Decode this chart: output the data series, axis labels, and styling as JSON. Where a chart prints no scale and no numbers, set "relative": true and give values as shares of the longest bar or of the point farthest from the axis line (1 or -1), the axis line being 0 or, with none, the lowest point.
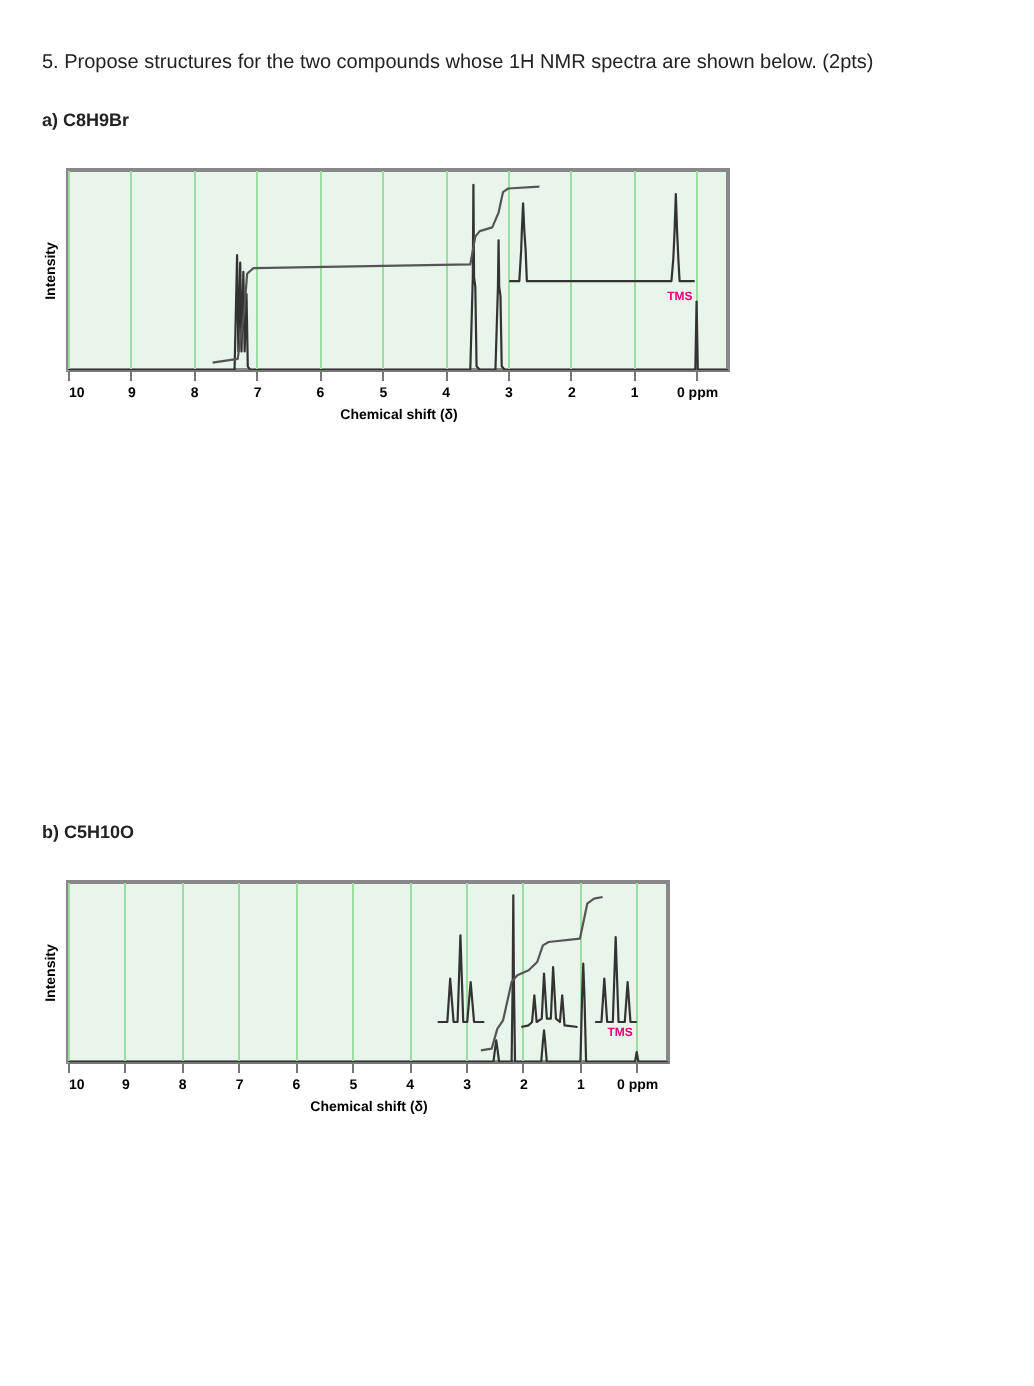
{
  "chart_data": [
    {
      "type": "line",
      "title": "5. Propose structures for the two compounds whose 1H NMR spectra are shown below. (2pts)",
      "subtitle": "a) C8H9Br",
      "xlabel": "Chemical shift (δ)",
      "ylabel": "Intensity",
      "relative": true,
      "grid": "x",
      "marker": "none",
      "line_style": "solid",
      "xlim": [
        10,
        -0.5
      ],
      "xticks": [
        10,
        9,
        8,
        7,
        6,
        5,
        4,
        3,
        2,
        1,
        {
          "value": 0,
          "label": "0 ppm"
        }
      ],
      "series": [
        {
          "color": "#333333",
          "x": [
            10,
            7.35,
            7.31,
            7.29,
            7.26,
            7.24,
            7.21,
            7.19,
            7.16,
            7.14,
            7.1,
            3.6,
            3.56,
            3.55,
            3.54,
            3.52,
            3.5,
            3.45,
            3.2,
            3.16,
            3.15,
            3.14,
            3.12,
            3.1,
            3.05,
            0.02,
            0.0,
            -0.02,
            -0.5
          ],
          "values": [
            0,
            0,
            0.62,
            0.1,
            0.58,
            0.1,
            0.53,
            0.1,
            0.41,
            0.02,
            0,
            0,
            0.5,
            1.0,
            0.5,
            0.45,
            0.02,
            0,
            0,
            0.45,
            0.7,
            0.45,
            0.4,
            0.02,
            0,
            0,
            0.37,
            0,
            0
          ]
        },
        {
          "color": "#555555",
          "x": [
            7.7,
            7.3,
            7.2,
            7.15,
            7.05,
            3.6,
            3.52,
            3.45,
            3.25,
            3.15,
            3.08,
            3.0,
            2.5
          ],
          "values": [
            0.04,
            0.06,
            0.3,
            0.52,
            0.55,
            0.57,
            0.72,
            0.75,
            0.77,
            0.85,
            0.96,
            0.98,
            0.99
          ]
        },
        {
          "color": "#333333",
          "x": [
            2.98,
            2.82,
            2.79,
            2.78,
            2.76,
            2.74,
            2.72,
            2.7,
            0.4,
            0.37,
            0.35,
            0.33,
            0.31,
            0.29,
            0.27,
            0.03
          ],
          "values": [
            0.48,
            0.48,
            0.65,
            0.75,
            0.9,
            0.75,
            0.65,
            0.48,
            0.48,
            0.6,
            0.75,
            0.95,
            0.75,
            0.6,
            0.48,
            0.48
          ]
        }
      ],
      "annotations": [
        "TMS"
      ]
    },
    {
      "type": "line",
      "title": "b) C5H10O",
      "xlabel": "Chemical shift (δ)",
      "ylabel": "Intensity",
      "relative": true,
      "grid": "x",
      "marker": "none",
      "line_style": "solid",
      "xlim": [
        10,
        -0.55
      ],
      "xticks": [
        10,
        9,
        8,
        7,
        6,
        5,
        4,
        3,
        2,
        1,
        {
          "value": 0,
          "label": "0 ppm"
        }
      ],
      "series": [
        {
          "color": "#333333",
          "x": [
            10,
            2.52,
            2.49,
            2.47,
            2.45,
            2.42,
            2.2,
            2.18,
            2.17,
            2.16,
            2.14,
            1.68,
            1.65,
            1.63,
            1.61,
            1.58,
            0.99,
            0.96,
            0.94,
            0.92,
            0.89,
            0.03,
            0.0,
            -0.03,
            -0.55
          ],
          "values": [
            0,
            0,
            0.08,
            0.13,
            0.08,
            0,
            0,
            0.5,
            1.0,
            0.5,
            0,
            0,
            0.12,
            0.19,
            0.12,
            0,
            0,
            0.4,
            0.59,
            0.4,
            0,
            0,
            0.06,
            0,
            0
          ]
        },
        {
          "color": "#555555",
          "x": [
            2.74,
            2.55,
            2.45,
            2.35,
            2.2,
            2.1,
            1.9,
            1.75,
            1.65,
            1.55,
            1.0,
            0.93,
            0.87,
            0.75,
            0.6
          ],
          "values": [
            0.07,
            0.08,
            0.2,
            0.25,
            0.48,
            0.52,
            0.55,
            0.6,
            0.7,
            0.72,
            0.74,
            0.85,
            0.95,
            0.98,
            0.99
          ]
        },
        {
          "color": "#333333",
          "x": [
            3.5,
            3.33,
            3.28,
            3.22,
            3.15,
            3.1,
            3.05,
            2.98,
            2.92,
            2.86,
            2.68
          ],
          "values": [
            0.24,
            0.24,
            0.5,
            0.24,
            0.24,
            0.76,
            0.24,
            0.24,
            0.48,
            0.24,
            0.24
          ]
        },
        {
          "color": "#333333",
          "x": [
            2.03,
            1.9,
            1.84,
            1.8,
            1.76,
            1.67,
            1.63,
            1.58,
            1.51,
            1.47,
            1.42,
            1.35,
            1.31,
            1.27,
            1.04
          ],
          "values": [
            0.21,
            0.22,
            0.24,
            0.4,
            0.24,
            0.26,
            0.53,
            0.26,
            0.26,
            0.57,
            0.26,
            0.24,
            0.4,
            0.22,
            0.21
          ]
        },
        {
          "color": "#333333",
          "x": [
            0.73,
            0.62,
            0.57,
            0.52,
            0.42,
            0.37,
            0.32,
            0.21,
            0.16,
            0.11,
            0.0
          ],
          "values": [
            0.24,
            0.24,
            0.5,
            0.24,
            0.24,
            0.75,
            0.24,
            0.24,
            0.48,
            0.24,
            0.24
          ]
        }
      ],
      "annotations": [
        "TMS"
      ]
    }
  ]
}
